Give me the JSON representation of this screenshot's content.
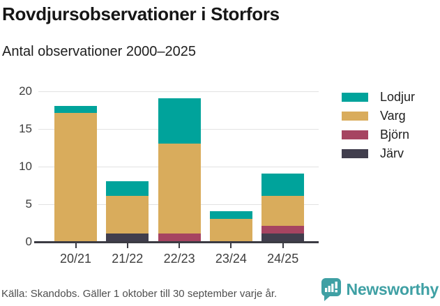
{
  "header": {
    "title": "Rovdjursobservationer i Storfors",
    "subtitle": "Antal observationer 2000–2025"
  },
  "chart_data": {
    "type": "bar",
    "stacked": true,
    "title": "Rovdjursobservationer i Storfors",
    "subtitle": "Antal observationer 2000–2025",
    "categories": [
      "20/21",
      "21/22",
      "22/23",
      "23/24",
      "24/25"
    ],
    "series": [
      {
        "name": "Lodjur",
        "color": "#00a39b",
        "values": [
          1,
          2,
          6,
          1,
          3
        ]
      },
      {
        "name": "Varg",
        "color": "#d9ac5c",
        "values": [
          17,
          5,
          12,
          3,
          4
        ]
      },
      {
        "name": "Björn",
        "color": "#a64461",
        "values": [
          0,
          0,
          1,
          0,
          1
        ]
      },
      {
        "name": "Järv",
        "color": "#413e4d",
        "values": [
          0,
          1,
          0,
          0,
          1
        ]
      }
    ],
    "stack_order_bottom_to_top": [
      "Järv",
      "Björn",
      "Varg",
      "Lodjur"
    ],
    "totals": [
      18,
      8,
      19,
      4,
      9
    ],
    "xlabel": "",
    "ylabel": "",
    "ylim": [
      0,
      20
    ],
    "yticks": [
      0,
      5,
      10,
      15,
      20
    ],
    "grid": true,
    "legend_position": "right"
  },
  "footer": {
    "source": "Källa: Skandobs. Gäller 1 oktober till 30 september varje år.",
    "brand": "Newsworthy"
  },
  "colors": {
    "accent_teal": "#00a39b",
    "gold": "#d9ac5c",
    "maroon": "#a64461",
    "dark_slate": "#413e4d",
    "axis": "#3b3b43",
    "gridline": "#e2e2e2",
    "brand_teal": "#3fa0a4"
  }
}
